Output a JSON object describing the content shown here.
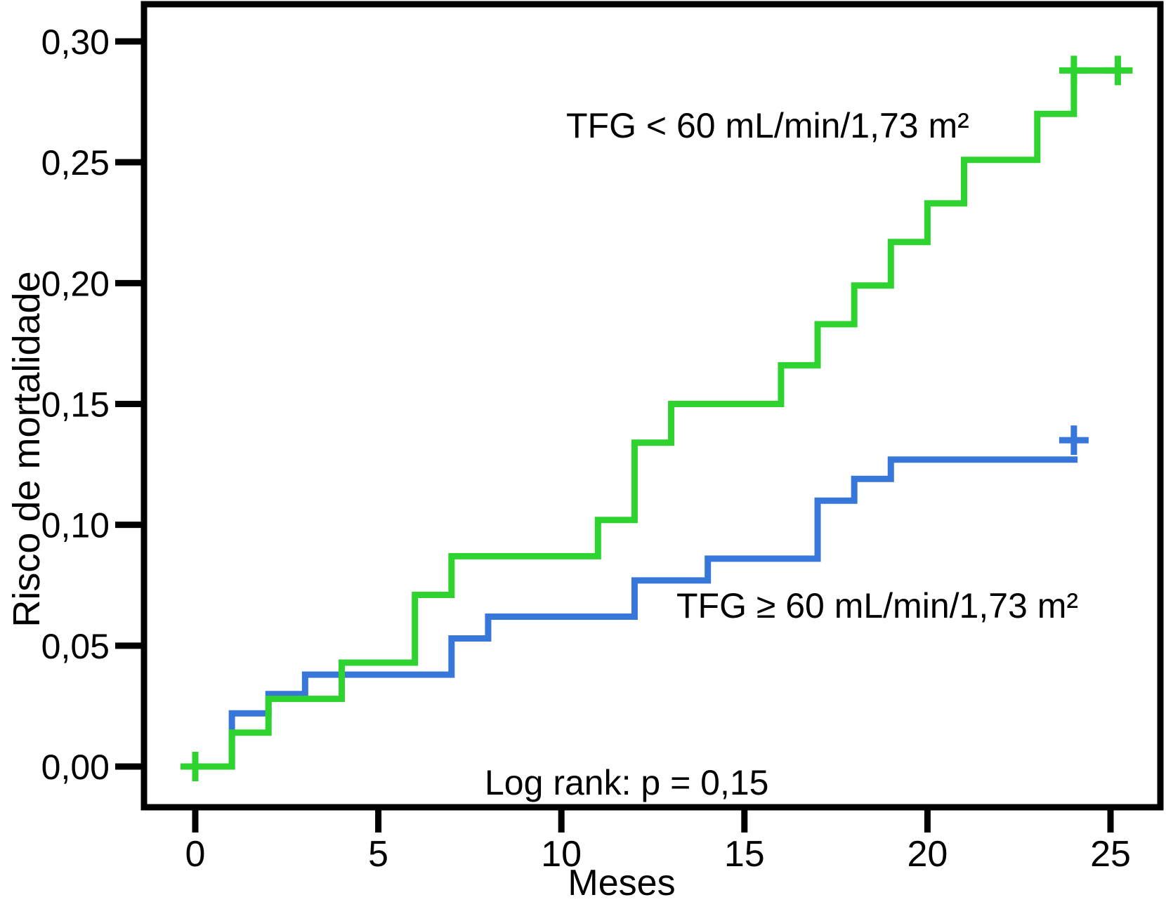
{
  "chart_data": {
    "type": "line",
    "subtype": "kaplan-meier-cumulative-risk-steps",
    "title": "",
    "xlabel": "Meses",
    "ylabel": "Risco de mortalidade",
    "xlim": [
      0,
      25
    ],
    "ylim": [
      0,
      0.3
    ],
    "grid": false,
    "xticks": {
      "values": [
        0,
        5,
        10,
        15,
        20,
        25
      ],
      "labels": [
        "0",
        "5",
        "10",
        "15",
        "20",
        "25"
      ]
    },
    "yticks": {
      "values": [
        0,
        0.05,
        0.1,
        0.15,
        0.2,
        0.25,
        0.3
      ],
      "labels": [
        "0,00",
        "0,05",
        "0,10",
        "0,15",
        "0,20",
        "0,25",
        "0,30"
      ]
    },
    "annotations": {
      "group_lt60": "TFG < 60 mL/min/1,73 m²",
      "group_ge60": "TFG ≥ 60 mL/min/1,73 m²",
      "log_rank": "Log rank: p = 0,15"
    },
    "series": [
      {
        "name": "TFG ≥ 60 mL/min/1,73 m²",
        "color": "#3777d9",
        "steps": [
          [
            0,
            0
          ],
          [
            1,
            0.022
          ],
          [
            2,
            0.03
          ],
          [
            3,
            0.038
          ],
          [
            7,
            0.053
          ],
          [
            8,
            0.062
          ],
          [
            12,
            0.077
          ],
          [
            14,
            0.086
          ],
          [
            17,
            0.11
          ],
          [
            18,
            0.119
          ],
          [
            19,
            0.127
          ]
        ],
        "line_end_month": 24.1,
        "censor_marks": [
          [
            24,
            0.135
          ]
        ]
      },
      {
        "name": "TFG < 60 mL/min/1,73 m²",
        "color": "#2fd32f",
        "steps": [
          [
            0,
            0
          ],
          [
            1,
            0.014
          ],
          [
            2,
            0.028
          ],
          [
            4,
            0.043
          ],
          [
            6,
            0.071
          ],
          [
            7,
            0.087
          ],
          [
            11,
            0.102
          ],
          [
            12,
            0.134
          ],
          [
            13,
            0.15
          ],
          [
            16,
            0.166
          ],
          [
            17,
            0.183
          ],
          [
            18,
            0.199
          ],
          [
            19,
            0.217
          ],
          [
            20,
            0.233
          ],
          [
            21,
            0.251
          ],
          [
            23,
            0.27
          ],
          [
            24,
            0.288
          ]
        ],
        "line_end_month": 25.3,
        "censor_marks": [
          [
            0,
            0
          ],
          [
            24,
            0.288
          ],
          [
            25.2,
            0.288
          ]
        ]
      }
    ]
  }
}
